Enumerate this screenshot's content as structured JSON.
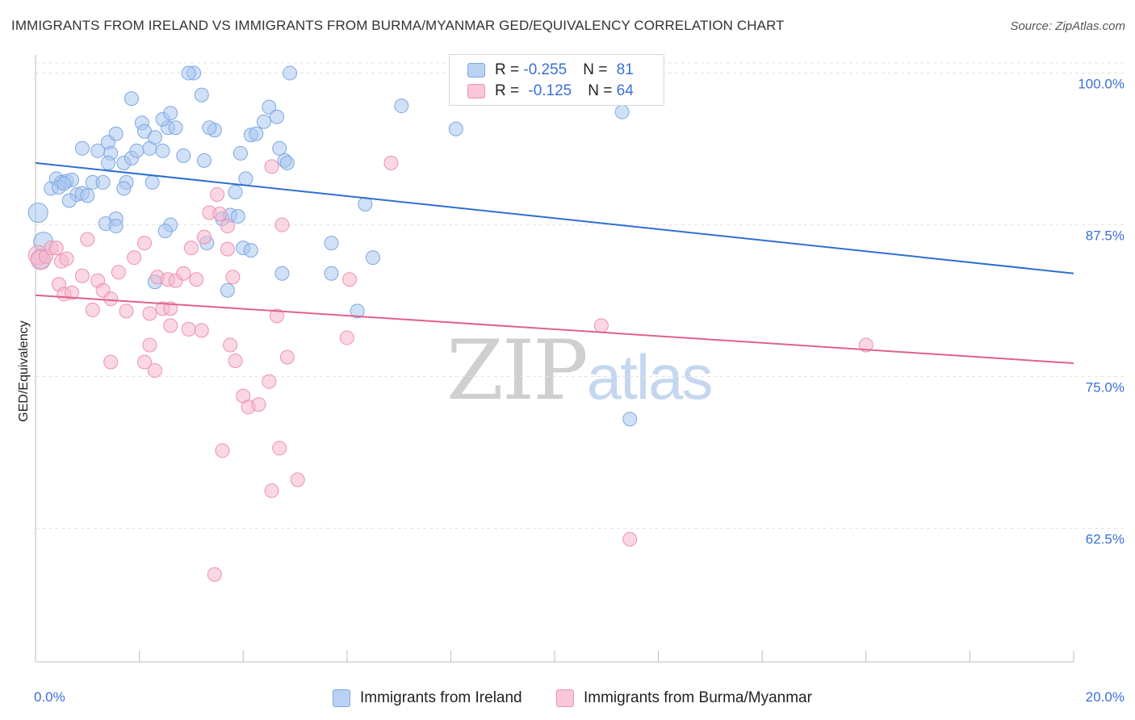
{
  "header": {
    "title": "IMMIGRANTS FROM IRELAND VS IMMIGRANTS FROM BURMA/MYANMAR GED/EQUIVALENCY CORRELATION CHART",
    "source": "Source: ZipAtlas.com"
  },
  "watermark": {
    "zip": "ZIP",
    "atlas": "atlas"
  },
  "legend_top": {
    "rows": [
      {
        "r_label": "R = ",
        "r_value": "-0.255",
        "n_label": "N = ",
        "n_value": "81"
      },
      {
        "r_label": "R = ",
        "r_value": "-0.125",
        "n_label": "N = ",
        "n_value": "64"
      }
    ]
  },
  "legend_bottom": {
    "items": [
      "Immigrants from Ireland",
      "Immigrants from Burma/Myanmar"
    ]
  },
  "colors": {
    "ireland_fill": "#a9c7f0",
    "ireland_stroke": "#7ea8e0",
    "ireland_line": "#2f6fd0",
    "burma_fill": "#f6b6cc",
    "burma_stroke": "#ec92b1",
    "burma_line": "#e0608e",
    "tick_label": "#3a6fd8",
    "grid": "#e2e2e2"
  },
  "chart_data": {
    "type": "scatter",
    "title": "IMMIGRANTS FROM IRELAND VS IMMIGRANTS FROM BURMA/MYANMAR GED/EQUIVALENCY CORRELATION CHART",
    "xlabel": "",
    "ylabel": "GED/Equivalency",
    "xlim": [
      0,
      20
    ],
    "ylim": [
      51.5,
      101.5
    ],
    "x_tick_labels": [
      {
        "v": 0,
        "t": "0.0%"
      },
      {
        "v": 20,
        "t": "20.0%"
      }
    ],
    "y_tick_labels": [
      {
        "v": 100,
        "t": "100.0%"
      },
      {
        "v": 87.5,
        "t": "87.5%"
      },
      {
        "v": 75,
        "t": "75.0%"
      },
      {
        "v": 62.5,
        "t": "62.5%"
      }
    ],
    "x_minor_ticks": [
      0,
      2,
      4,
      6,
      8,
      10,
      12,
      14,
      16,
      18,
      20
    ],
    "grid": true,
    "legend_position": "top-center",
    "series": [
      {
        "name": "Immigrants from Ireland",
        "r": -0.255,
        "n": 81,
        "trend": [
          [
            0,
            92.6
          ],
          [
            20,
            83.5
          ]
        ],
        "points": [
          [
            0.05,
            88.5
          ],
          [
            0.15,
            86.1
          ],
          [
            0.1,
            84.7
          ],
          [
            0.3,
            90.5
          ],
          [
            0.4,
            91.3
          ],
          [
            0.5,
            91.0
          ],
          [
            0.6,
            91.1
          ],
          [
            0.45,
            90.6
          ],
          [
            0.7,
            91.2
          ],
          [
            0.55,
            90.9
          ],
          [
            0.8,
            90.0
          ],
          [
            0.9,
            90.1
          ],
          [
            0.65,
            89.5
          ],
          [
            1.0,
            89.9
          ],
          [
            1.1,
            91.0
          ],
          [
            1.3,
            91.0
          ],
          [
            0.9,
            93.8
          ],
          [
            1.2,
            93.6
          ],
          [
            1.4,
            94.3
          ],
          [
            1.55,
            95.0
          ],
          [
            1.45,
            93.4
          ],
          [
            1.4,
            92.6
          ],
          [
            1.7,
            92.6
          ],
          [
            1.85,
            93.0
          ],
          [
            1.95,
            93.6
          ],
          [
            2.2,
            93.8
          ],
          [
            2.45,
            93.6
          ],
          [
            2.85,
            93.2
          ],
          [
            2.05,
            95.9
          ],
          [
            2.1,
            95.2
          ],
          [
            2.3,
            94.7
          ],
          [
            2.55,
            95.5
          ],
          [
            2.7,
            95.5
          ],
          [
            2.45,
            96.2
          ],
          [
            2.6,
            96.7
          ],
          [
            1.85,
            97.9
          ],
          [
            1.75,
            91.0
          ],
          [
            1.7,
            90.5
          ],
          [
            1.55,
            88.0
          ],
          [
            1.35,
            87.6
          ],
          [
            1.55,
            87.4
          ],
          [
            2.25,
            91.0
          ],
          [
            2.6,
            87.5
          ],
          [
            2.5,
            87.0
          ],
          [
            3.05,
            100.0
          ],
          [
            2.95,
            100.0
          ],
          [
            3.2,
            98.2
          ],
          [
            3.25,
            92.8
          ],
          [
            3.45,
            95.3
          ],
          [
            3.35,
            95.5
          ],
          [
            3.6,
            88.0
          ],
          [
            3.75,
            88.3
          ],
          [
            3.9,
            88.2
          ],
          [
            3.85,
            90.2
          ],
          [
            3.95,
            93.4
          ],
          [
            4.05,
            91.3
          ],
          [
            4.15,
            94.9
          ],
          [
            4.25,
            95.0
          ],
          [
            4.4,
            96.0
          ],
          [
            4.5,
            97.2
          ],
          [
            4.65,
            96.4
          ],
          [
            4.7,
            93.8
          ],
          [
            4.8,
            92.8
          ],
          [
            4.85,
            92.6
          ],
          [
            4.0,
            85.6
          ],
          [
            4.15,
            85.4
          ],
          [
            3.3,
            86.0
          ],
          [
            5.7,
            83.5
          ],
          [
            4.9,
            100.0
          ],
          [
            4.75,
            83.5
          ],
          [
            5.7,
            86.0
          ],
          [
            6.5,
            84.8
          ],
          [
            6.35,
            89.2
          ],
          [
            7.05,
            97.3
          ],
          [
            8.1,
            95.4
          ],
          [
            10.2,
            98.2
          ],
          [
            11.3,
            96.8
          ],
          [
            11.45,
            71.5
          ],
          [
            6.2,
            80.4
          ],
          [
            3.7,
            82.1
          ],
          [
            2.3,
            82.8
          ]
        ]
      },
      {
        "name": "Immigrants from Burma/Myanmar",
        "r": -0.125,
        "n": 64,
        "trend": [
          [
            0,
            81.7
          ],
          [
            20,
            76.1
          ]
        ],
        "points": [
          [
            0.05,
            85.0
          ],
          [
            0.1,
            84.6
          ],
          [
            0.2,
            84.9
          ],
          [
            0.3,
            85.6
          ],
          [
            0.4,
            85.6
          ],
          [
            0.5,
            84.5
          ],
          [
            0.6,
            84.7
          ],
          [
            0.45,
            82.6
          ],
          [
            0.55,
            81.8
          ],
          [
            0.7,
            81.9
          ],
          [
            0.9,
            83.3
          ],
          [
            1.0,
            86.3
          ],
          [
            1.1,
            80.5
          ],
          [
            1.2,
            82.9
          ],
          [
            1.3,
            82.1
          ],
          [
            1.45,
            81.4
          ],
          [
            1.6,
            83.6
          ],
          [
            1.75,
            80.4
          ],
          [
            1.9,
            84.8
          ],
          [
            2.1,
            86.0
          ],
          [
            2.2,
            80.2
          ],
          [
            2.35,
            83.2
          ],
          [
            2.45,
            80.6
          ],
          [
            2.55,
            83.0
          ],
          [
            2.6,
            80.6
          ],
          [
            2.7,
            82.9
          ],
          [
            2.85,
            83.5
          ],
          [
            3.0,
            85.6
          ],
          [
            3.1,
            83.0
          ],
          [
            3.25,
            86.5
          ],
          [
            3.35,
            88.5
          ],
          [
            3.55,
            88.4
          ],
          [
            3.7,
            87.4
          ],
          [
            3.5,
            90.0
          ],
          [
            3.7,
            85.5
          ],
          [
            3.8,
            83.2
          ],
          [
            2.1,
            76.2
          ],
          [
            2.2,
            77.6
          ],
          [
            2.6,
            79.2
          ],
          [
            2.95,
            78.9
          ],
          [
            3.2,
            78.8
          ],
          [
            3.75,
            77.6
          ],
          [
            3.85,
            76.3
          ],
          [
            4.0,
            73.4
          ],
          [
            4.1,
            72.5
          ],
          [
            4.3,
            72.7
          ],
          [
            4.5,
            74.6
          ],
          [
            4.7,
            69.1
          ],
          [
            4.85,
            76.6
          ],
          [
            4.65,
            80.0
          ],
          [
            4.75,
            87.5
          ],
          [
            4.55,
            92.3
          ],
          [
            3.6,
            68.9
          ],
          [
            4.55,
            65.6
          ],
          [
            5.05,
            66.5
          ],
          [
            6.85,
            92.6
          ],
          [
            6.0,
            78.2
          ],
          [
            6.05,
            83.0
          ],
          [
            10.9,
            79.2
          ],
          [
            11.45,
            61.6
          ],
          [
            16.0,
            77.6
          ],
          [
            3.45,
            58.7
          ],
          [
            1.45,
            76.2
          ],
          [
            2.3,
            75.5
          ]
        ]
      }
    ]
  }
}
